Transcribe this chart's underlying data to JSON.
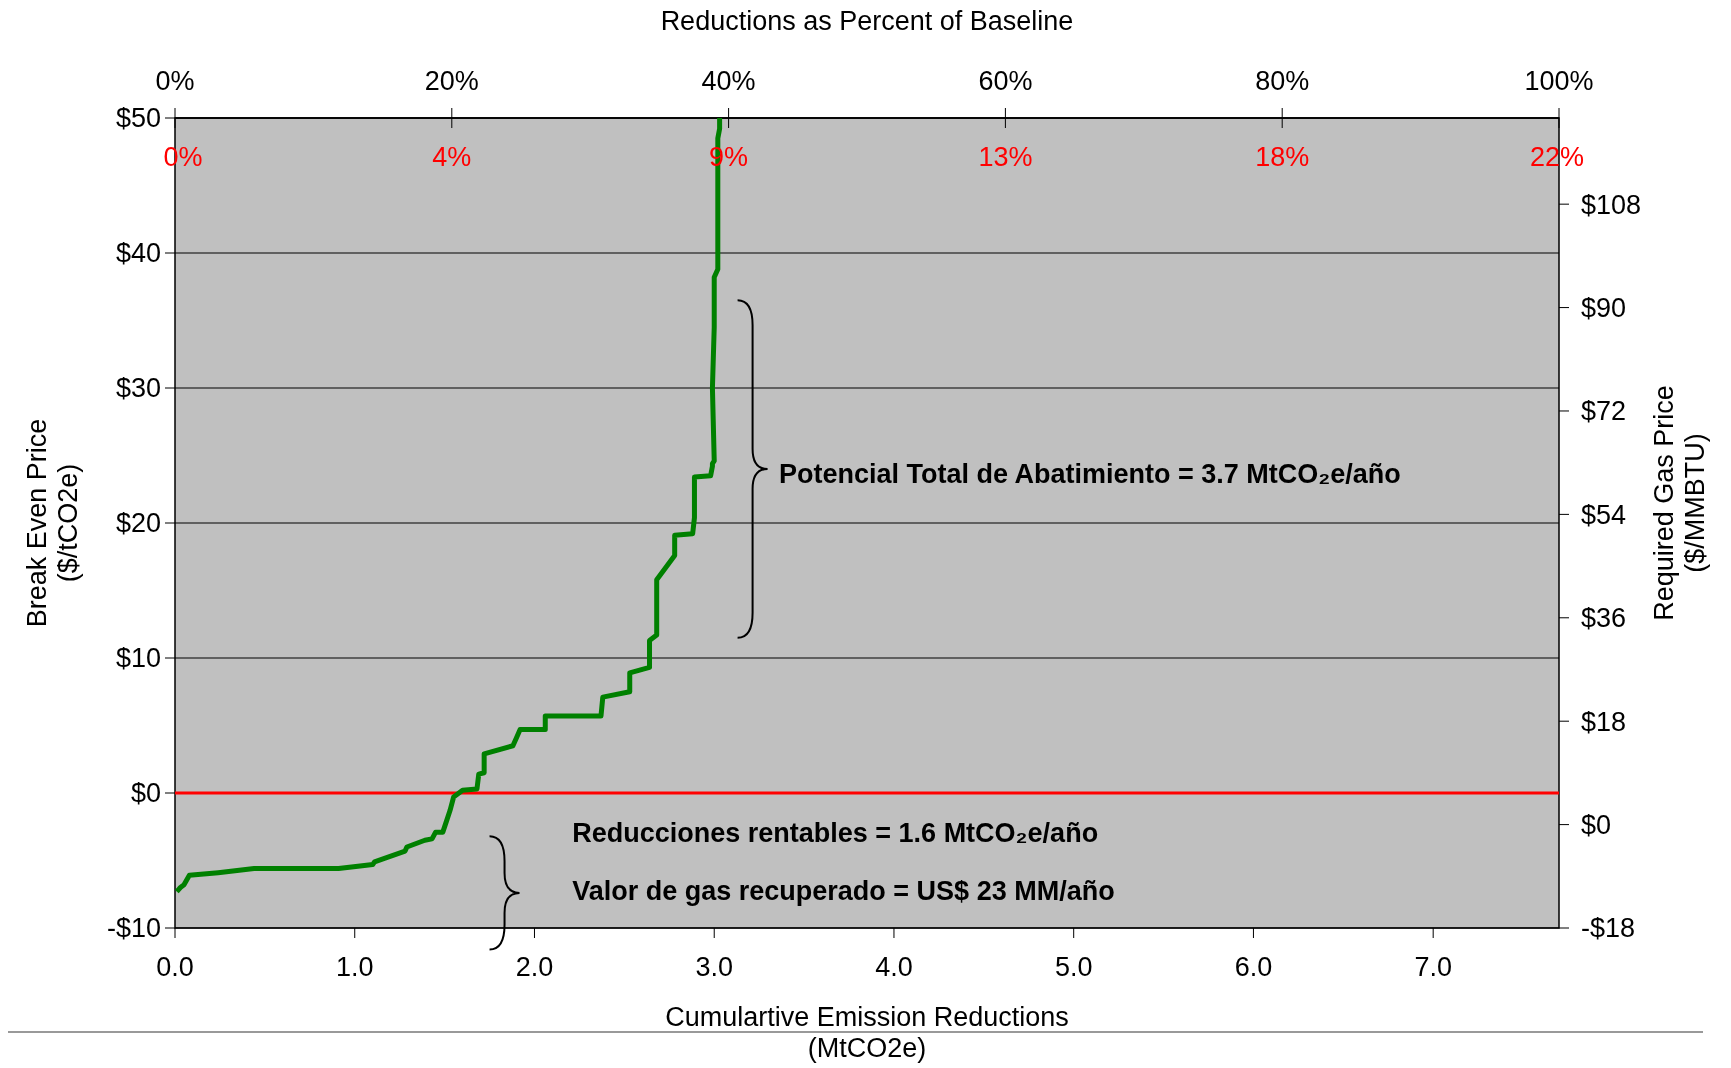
{
  "chart_data": {
    "type": "line",
    "xlabel": "Cumulartive Emission Reductions\n(MtCO2e)",
    "ylabel": "Break Even Price\n($/tCO2e)",
    "y2label": "Required Gas Price\n($/MMBTU)",
    "x2label": "Reductions as Percent of Baseline",
    "xlim": [
      0,
      7.7
    ],
    "xticks": [
      {
        "value": 0,
        "label": "0.0"
      },
      {
        "value": 1,
        "label": "1.0"
      },
      {
        "value": 2,
        "label": "2.0"
      },
      {
        "value": 3,
        "label": "3.0"
      },
      {
        "value": 4,
        "label": "4.0"
      },
      {
        "value": 5,
        "label": "5.0"
      },
      {
        "value": 6,
        "label": "6.0"
      },
      {
        "value": 7,
        "label": "7.0"
      }
    ],
    "ylim": [
      -10,
      50
    ],
    "yticks": [
      {
        "value": -10,
        "label": "-$10"
      },
      {
        "value": 0,
        "label": "$0"
      },
      {
        "value": 10,
        "label": "$10"
      },
      {
        "value": 20,
        "label": "$20"
      },
      {
        "value": 30,
        "label": "$30"
      },
      {
        "value": 40,
        "label": "$40"
      },
      {
        "value": 50,
        "label": "$50"
      }
    ],
    "y2lim": [
      -18,
      123
    ],
    "y2ticks": [
      {
        "value": -18,
        "label": "-$18"
      },
      {
        "value": 0,
        "label": "$0"
      },
      {
        "value": 18,
        "label": "$18"
      },
      {
        "value": 36,
        "label": "$36"
      },
      {
        "value": 54,
        "label": "$54"
      },
      {
        "value": 72,
        "label": "$72"
      },
      {
        "value": 90,
        "label": "$90"
      },
      {
        "value": 108,
        "label": "$108"
      }
    ],
    "x2lim": [
      0,
      100
    ],
    "x2ticks": [
      {
        "value": 0,
        "label": "0%"
      },
      {
        "value": 20,
        "label": "20%"
      },
      {
        "value": 40,
        "label": "40%"
      },
      {
        "value": 60,
        "label": "60%"
      },
      {
        "value": 80,
        "label": "80%"
      },
      {
        "value": 100,
        "label": "100%"
      }
    ],
    "grid": "y",
    "marker": "none",
    "line_style": "solid",
    "ref_lines": [
      {
        "axis": "y",
        "value": 0,
        "label": null,
        "color": "#ff0000"
      }
    ],
    "series": [
      {
        "color": "#008000",
        "x": [
          0.01,
          0.03,
          0.05,
          0.08,
          0.24,
          0.44,
          0.91,
          1.03,
          1.1,
          1.11,
          1.28,
          1.29,
          1.39,
          1.43,
          1.45,
          1.49,
          1.51,
          1.53,
          1.55,
          1.6,
          1.68,
          1.69,
          1.72,
          1.72,
          1.88,
          1.9,
          1.92,
          2.06,
          2.06,
          2.37,
          2.38,
          2.53,
          2.53,
          2.64,
          2.64,
          2.68,
          2.68,
          2.78,
          2.78,
          2.88,
          2.89,
          2.89,
          2.98,
          2.99,
          2.99,
          3.0,
          2.99,
          3.0,
          3.0,
          3.02,
          3.02,
          3.03,
          3.03
        ],
        "values": [
          -7.3,
          -7.0,
          -6.8,
          -6.1,
          -5.9,
          -5.6,
          -5.6,
          -5.4,
          -5.3,
          -5.1,
          -4.3,
          -4.0,
          -3.5,
          -3.4,
          -2.9,
          -2.9,
          -2.1,
          -1.3,
          -0.3,
          0.2,
          0.3,
          1.4,
          1.5,
          2.9,
          3.5,
          4.1,
          4.7,
          4.7,
          5.7,
          5.7,
          7.1,
          7.5,
          8.9,
          9.3,
          11.3,
          11.7,
          15.8,
          17.6,
          19.1,
          19.2,
          20.4,
          23.4,
          23.5,
          24.2,
          24.4,
          24.6,
          30.0,
          34.5,
          38.2,
          38.8,
          48.5,
          49.2,
          50.0
        ]
      }
    ],
    "annotations": [
      "0%",
      "4%",
      "9%",
      "13%",
      "18%",
      "22%",
      "Potencial Total de Abatimiento = 3.7 MtCO₂e/año",
      "Reducciones rentables = 1.6 MtCO₂e/año",
      "Valor de gas recuperado = US$ 23 MM/año"
    ]
  }
}
